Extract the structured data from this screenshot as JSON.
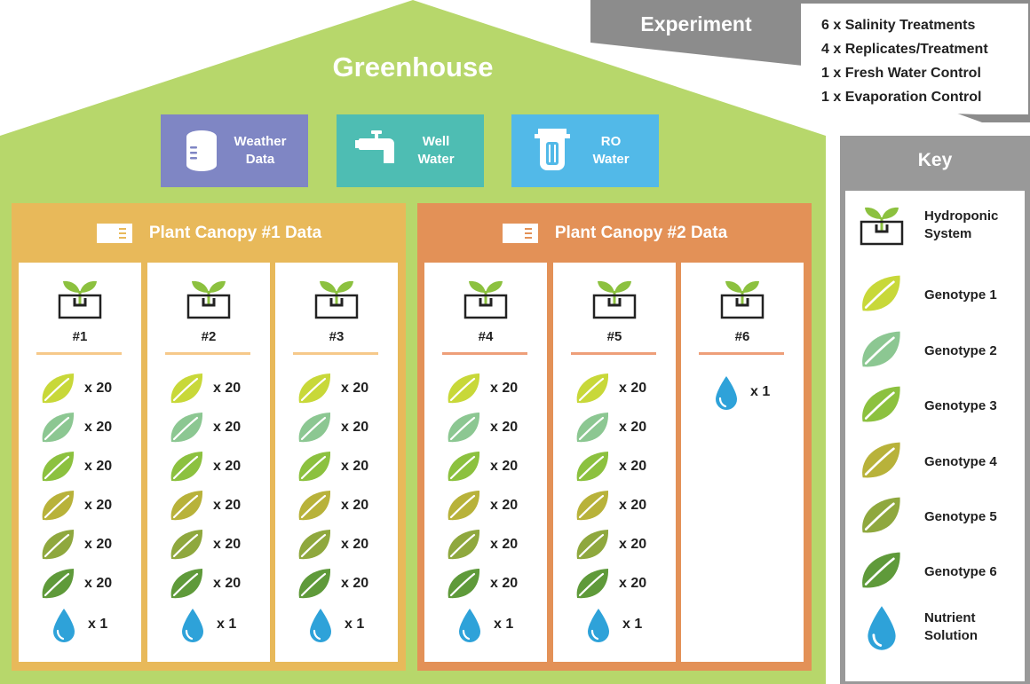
{
  "greenhouse": {
    "title": "Greenhouse"
  },
  "sources": [
    {
      "line1": "Weather",
      "line2": "Data",
      "color": "#7f86c4",
      "icon": "database-icon"
    },
    {
      "line1": "Well",
      "line2": "Water",
      "color": "#4ebdb3",
      "icon": "faucet-icon"
    },
    {
      "line1": "RO",
      "line2": "Water",
      "color": "#52b9e8",
      "icon": "water-filter-icon"
    }
  ],
  "canopies": [
    {
      "title": "Plant Canopy #1 Data",
      "frame_color": "#e8b95a",
      "divider_color": "#f6c98a",
      "systems": [
        {
          "label": "#1",
          "rows": [
            "x 20",
            "x 20",
            "x 20",
            "x 20",
            "x 20",
            "x 20"
          ],
          "nutrient": "x 1"
        },
        {
          "label": "#2",
          "rows": [
            "x 20",
            "x 20",
            "x 20",
            "x 20",
            "x 20",
            "x 20"
          ],
          "nutrient": "x 1"
        },
        {
          "label": "#3",
          "rows": [
            "x 20",
            "x 20",
            "x 20",
            "x 20",
            "x 20",
            "x 20"
          ],
          "nutrient": "x 1"
        }
      ]
    },
    {
      "title": "Plant Canopy #2 Data",
      "frame_color": "#e39157",
      "divider_color": "#ee9f79",
      "systems": [
        {
          "label": "#4",
          "rows": [
            "x 20",
            "x 20",
            "x 20",
            "x 20",
            "x 20",
            "x 20"
          ],
          "nutrient": "x 1"
        },
        {
          "label": "#5",
          "rows": [
            "x 20",
            "x 20",
            "x 20",
            "x 20",
            "x 20",
            "x 20"
          ],
          "nutrient": "x 1"
        },
        {
          "label": "#6",
          "rows": [],
          "nutrient": "x 1"
        }
      ]
    }
  ],
  "experiment": {
    "title": "Experiment",
    "lines": [
      "6 x Salinity Treatments",
      "4 x Replicates/Treatment",
      "1 x Fresh Water Control",
      "1 x Evaporation Control"
    ]
  },
  "key": {
    "title": "Key",
    "items": [
      {
        "line1": "Hydroponic",
        "line2": "System",
        "icon": "hydroponic-system-icon"
      },
      {
        "line1": "Genotype 1",
        "line2": "",
        "icon": "leaf-icon"
      },
      {
        "line1": "Genotype 2",
        "line2": "",
        "icon": "leaf-icon"
      },
      {
        "line1": "Genotype 3",
        "line2": "",
        "icon": "leaf-icon"
      },
      {
        "line1": "Genotype 4",
        "line2": "",
        "icon": "leaf-icon"
      },
      {
        "line1": "Genotype 5",
        "line2": "",
        "icon": "leaf-icon"
      },
      {
        "line1": "Genotype 6",
        "line2": "",
        "icon": "leaf-icon"
      },
      {
        "line1": "Nutrient",
        "line2": "Solution",
        "icon": "water-drop-icon"
      }
    ]
  },
  "genotype_colors": [
    "#c8d839",
    "#8cc792",
    "#8cc13f",
    "#b8b23a",
    "#8fa83e",
    "#5f9a3a"
  ],
  "colors": {
    "house_green": "#b7d76b",
    "experiment_gray": "#8c8c8c",
    "key_gray": "#999999",
    "drop_blue": "#2ea2d9"
  }
}
